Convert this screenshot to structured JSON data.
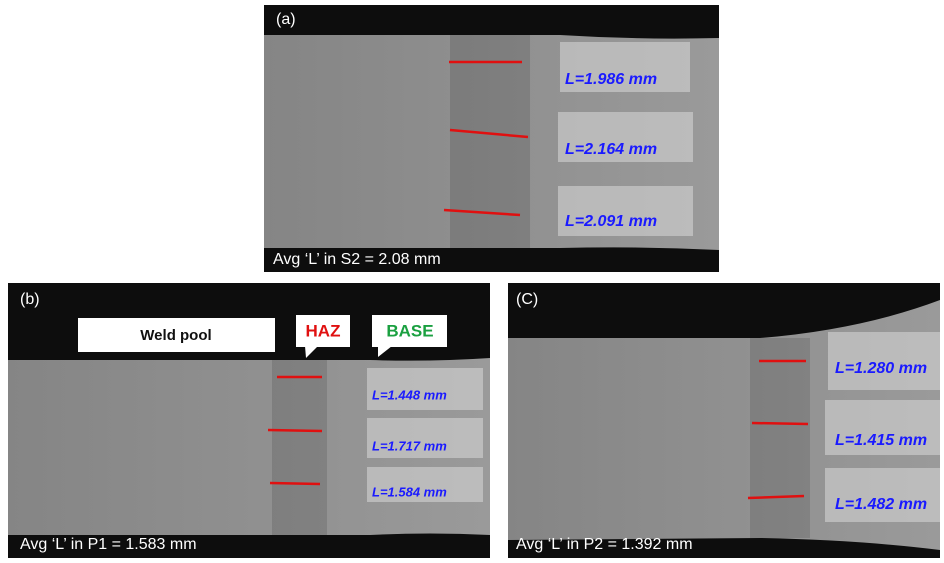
{
  "panels": [
    {
      "label": "(a)",
      "measurements": [
        "L=1.986 mm",
        "L=2.164 mm",
        "L=2.091 mm"
      ],
      "average": "Avg ‘L’ in S2 = 2.08 mm"
    },
    {
      "label": "(b)",
      "measurements": [
        "L=1.448 mm",
        "L=1.717 mm",
        "L=1.584 mm"
      ],
      "average": "Avg ‘L’ in P1 = 1.583 mm",
      "callouts": [
        "Weld pool",
        "HAZ",
        "BASE"
      ]
    },
    {
      "label": "(C)",
      "measurements": [
        "L=1.280 mm",
        "L=1.415 mm",
        "L=1.482 mm"
      ],
      "average": "Avg ‘L’ in P2 = 1.392 mm"
    }
  ]
}
